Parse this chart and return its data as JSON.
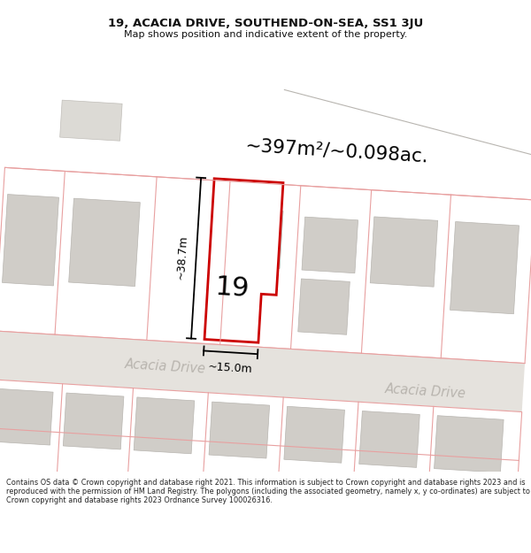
{
  "title_line1": "19, ACACIA DRIVE, SOUTHEND-ON-SEA, SS1 3JU",
  "title_line2": "Map shows position and indicative extent of the property.",
  "area_text": "~397m²/~0.098ac.",
  "dim_height": "~38.7m",
  "dim_width": "~15.0m",
  "label_number": "19",
  "road_name1": "Acacia Drive",
  "road_name2": "Acacia Drive",
  "footer_text": "Contains OS data © Crown copyright and database right 2021. This information is subject to Crown copyright and database rights 2023 and is reproduced with the permission of HM Land Registry. The polygons (including the associated geometry, namely x, y co-ordinates) are subject to Crown copyright and database rights 2023 Ordnance Survey 100026316.",
  "map_bg": "#f5f2ee",
  "red_plot_color": "#cc0000",
  "pink_line_color": "#e8a0a0",
  "block_color": "#d0cdc8",
  "title_color": "#111111",
  "footer_color": "#222222",
  "road_text_color": "#b8b4ae",
  "dim_color": "#111111"
}
